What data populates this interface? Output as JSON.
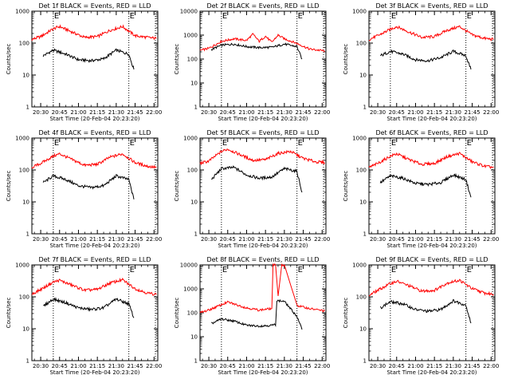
{
  "chart_data": [
    {
      "type": "line",
      "title": "Det 1f BLACK = Events, RED = LLD",
      "xlabel": "Start Time (20-Feb-04 20:23:20)",
      "ylabel": "Counts/sec",
      "yscale": "log",
      "ylim": [
        1,
        1000
      ],
      "y_ticks": [
        "1",
        "10",
        "100",
        "1000"
      ],
      "x_ticks": [
        "20:30",
        "20:45",
        "21:00",
        "21:15",
        "21:30",
        "21:45",
        "22:00"
      ],
      "markers": [
        "E",
        "E"
      ],
      "series": [
        {
          "color": "#000000",
          "x": [
            "20:32",
            "20:40",
            "20:50",
            "21:00",
            "21:10",
            "21:20",
            "21:30",
            "21:40",
            "21:44"
          ],
          "y": [
            40,
            60,
            45,
            30,
            28,
            32,
            60,
            45,
            15
          ]
        },
        {
          "color": "#ff0000",
          "x": [
            "20:23",
            "20:30",
            "20:40",
            "20:45",
            "20:55",
            "21:05",
            "21:15",
            "21:25",
            "21:35",
            "21:45",
            "21:55",
            "22:02"
          ],
          "y": [
            130,
            160,
            280,
            330,
            220,
            150,
            160,
            250,
            330,
            170,
            150,
            140
          ]
        }
      ]
    },
    {
      "type": "line",
      "title": "Det 2f BLACK = Events, RED = LLD",
      "xlabel": "Start Time (20-Feb-04 20:23:20)",
      "ylabel": "Counts/sec",
      "yscale": "log",
      "ylim": [
        1,
        10000
      ],
      "y_ticks": [
        "1",
        "10",
        "100",
        "1000",
        "10000"
      ],
      "x_ticks": [
        "20:30",
        "20:45",
        "21:00",
        "21:15",
        "21:30",
        "21:45",
        "22:00"
      ],
      "markers": [
        "E",
        "E"
      ],
      "series": [
        {
          "color": "#000000",
          "x": [
            "20:32",
            "20:40",
            "20:50",
            "21:00",
            "21:10",
            "21:20",
            "21:30",
            "21:40",
            "21:44"
          ],
          "y": [
            250,
            380,
            420,
            330,
            300,
            310,
            420,
            330,
            100
          ]
        },
        {
          "color": "#ff0000",
          "x": [
            "20:23",
            "20:30",
            "20:40",
            "20:50",
            "21:00",
            "21:05",
            "21:10",
            "21:15",
            "21:20",
            "21:25",
            "21:30",
            "21:40",
            "21:50",
            "22:02"
          ],
          "y": [
            230,
            280,
            550,
            700,
            600,
            1100,
            550,
            900,
            500,
            1000,
            700,
            450,
            260,
            220
          ]
        }
      ]
    },
    {
      "type": "line",
      "title": "Det 3f BLACK = Events, RED = LLD",
      "xlabel": "Start Time (20-Feb-04 20:23:20)",
      "ylabel": "Counts/sec",
      "yscale": "log",
      "ylim": [
        1,
        1000
      ],
      "y_ticks": [
        "1",
        "10",
        "100",
        "1000"
      ],
      "x_ticks": [
        "20:30",
        "20:45",
        "21:00",
        "21:15",
        "21:30",
        "21:45",
        "22:00"
      ],
      "markers": [
        "E",
        "E"
      ],
      "series": [
        {
          "color": "#000000",
          "x": [
            "20:32",
            "20:40",
            "20:50",
            "21:00",
            "21:10",
            "21:20",
            "21:30",
            "21:40",
            "21:44"
          ],
          "y": [
            40,
            55,
            45,
            30,
            28,
            35,
            55,
            40,
            15
          ]
        },
        {
          "color": "#ff0000",
          "x": [
            "20:23",
            "20:30",
            "20:40",
            "20:45",
            "20:55",
            "21:05",
            "21:15",
            "21:25",
            "21:35",
            "21:45",
            "21:55",
            "22:02"
          ],
          "y": [
            130,
            170,
            270,
            330,
            220,
            150,
            160,
            250,
            330,
            180,
            140,
            130
          ]
        }
      ]
    },
    {
      "type": "line",
      "title": "Det 4f BLACK = Events, RED = LLD",
      "xlabel": "Start Time (20-Feb-04 20:23:20)",
      "ylabel": "Counts/sec",
      "yscale": "log",
      "ylim": [
        1,
        1000
      ],
      "y_ticks": [
        "1",
        "10",
        "100",
        "1000"
      ],
      "x_ticks": [
        "20:30",
        "20:45",
        "21:00",
        "21:15",
        "21:30",
        "21:45",
        "22:00"
      ],
      "markers": [
        "E",
        "E"
      ],
      "series": [
        {
          "color": "#000000",
          "x": [
            "20:32",
            "20:40",
            "20:50",
            "21:00",
            "21:10",
            "21:20",
            "21:30",
            "21:40",
            "21:44"
          ],
          "y": [
            40,
            65,
            50,
            32,
            28,
            32,
            65,
            50,
            12
          ]
        },
        {
          "color": "#ff0000",
          "x": [
            "20:23",
            "20:30",
            "20:40",
            "20:45",
            "20:55",
            "21:05",
            "21:15",
            "21:25",
            "21:35",
            "21:45",
            "21:55",
            "22:02"
          ],
          "y": [
            120,
            160,
            270,
            320,
            210,
            140,
            150,
            250,
            320,
            170,
            130,
            120
          ]
        }
      ]
    },
    {
      "type": "line",
      "title": "Det 5f BLACK = Events, RED = LLD",
      "xlabel": "Start Time (20-Feb-04 20:23:20)",
      "ylabel": "Counts/sec",
      "yscale": "log",
      "ylim": [
        1,
        1000
      ],
      "y_ticks": [
        "1",
        "10",
        "100",
        "1000"
      ],
      "x_ticks": [
        "20:30",
        "20:45",
        "21:00",
        "21:15",
        "21:30",
        "21:45",
        "22:00"
      ],
      "markers": [
        "E",
        "E"
      ],
      "series": [
        {
          "color": "#000000",
          "x": [
            "20:32",
            "20:40",
            "20:50",
            "21:00",
            "21:10",
            "21:20",
            "21:30",
            "21:40",
            "21:44"
          ],
          "y": [
            50,
            110,
            120,
            70,
            55,
            60,
            110,
            90,
            20
          ]
        },
        {
          "color": "#ff0000",
          "x": [
            "20:23",
            "20:30",
            "20:40",
            "20:45",
            "20:55",
            "21:05",
            "21:15",
            "21:25",
            "21:35",
            "21:45",
            "21:55",
            "22:02"
          ],
          "y": [
            160,
            190,
            380,
            450,
            300,
            200,
            210,
            330,
            380,
            230,
            180,
            170
          ]
        }
      ]
    },
    {
      "type": "line",
      "title": "Det 6f BLACK = Events, RED = LLD",
      "xlabel": "Start Time (20-Feb-04 20:23:20)",
      "ylabel": "Counts/sec",
      "yscale": "log",
      "ylim": [
        1,
        1000
      ],
      "y_ticks": [
        "1",
        "10",
        "100",
        "1000"
      ],
      "x_ticks": [
        "20:30",
        "20:45",
        "21:00",
        "21:15",
        "21:30",
        "21:45",
        "22:00"
      ],
      "markers": [
        "E",
        "E"
      ],
      "series": [
        {
          "color": "#000000",
          "x": [
            "20:32",
            "20:40",
            "20:50",
            "21:00",
            "21:10",
            "21:20",
            "21:30",
            "21:40",
            "21:44"
          ],
          "y": [
            40,
            65,
            55,
            38,
            35,
            40,
            70,
            50,
            14
          ]
        },
        {
          "color": "#ff0000",
          "x": [
            "20:23",
            "20:30",
            "20:40",
            "20:45",
            "20:55",
            "21:05",
            "21:15",
            "21:25",
            "21:35",
            "21:45",
            "21:55",
            "22:02"
          ],
          "y": [
            120,
            160,
            270,
            320,
            210,
            150,
            160,
            260,
            330,
            180,
            130,
            120
          ]
        }
      ]
    },
    {
      "type": "line",
      "title": "Det 7f BLACK = Events, RED = LLD",
      "xlabel": "Start Time (20-Feb-04 20:23:20)",
      "ylabel": "Counts/sec",
      "yscale": "log",
      "ylim": [
        1,
        1000
      ],
      "y_ticks": [
        "1",
        "10",
        "100",
        "1000"
      ],
      "x_ticks": [
        "20:30",
        "20:45",
        "21:00",
        "21:15",
        "21:30",
        "21:45",
        "22:00"
      ],
      "markers": [
        "E",
        "E"
      ],
      "series": [
        {
          "color": "#000000",
          "x": [
            "20:32",
            "20:40",
            "20:50",
            "21:00",
            "21:10",
            "21:20",
            "21:30",
            "21:40",
            "21:44"
          ],
          "y": [
            50,
            85,
            65,
            45,
            40,
            45,
            85,
            60,
            22
          ]
        },
        {
          "color": "#ff0000",
          "x": [
            "20:23",
            "20:30",
            "20:40",
            "20:45",
            "20:55",
            "21:05",
            "21:15",
            "21:25",
            "21:35",
            "21:45",
            "21:55",
            "22:02"
          ],
          "y": [
            120,
            170,
            290,
            330,
            230,
            160,
            170,
            270,
            340,
            180,
            130,
            120
          ]
        }
      ]
    },
    {
      "type": "line",
      "title": "Det 8f BLACK = Events, RED = LLD",
      "xlabel": "Start Time (20-Feb-04 20:23:20)",
      "ylabel": "Counts/sec",
      "yscale": "log",
      "ylim": [
        1,
        10000
      ],
      "y_ticks": [
        "1",
        "10",
        "100",
        "1000",
        "10000"
      ],
      "x_ticks": [
        "20:30",
        "20:45",
        "21:00",
        "21:15",
        "21:30",
        "21:45",
        "22:00"
      ],
      "markers": [
        "E",
        "E"
      ],
      "series": [
        {
          "color": "#000000",
          "x": [
            "20:32",
            "20:40",
            "20:50",
            "21:00",
            "21:10",
            "21:20",
            "21:23",
            "21:24",
            "21:30",
            "21:40",
            "21:44"
          ],
          "y": [
            35,
            55,
            45,
            30,
            28,
            30,
            32,
            320,
            300,
            70,
            20
          ]
        },
        {
          "color": "#ff0000",
          "x": [
            "20:23",
            "20:30",
            "20:45",
            "21:00",
            "21:10",
            "21:20",
            "21:21",
            "21:23",
            "21:25",
            "21:28",
            "21:30",
            "21:40",
            "21:50",
            "22:02"
          ],
          "y": [
            100,
            130,
            280,
            160,
            130,
            150,
            10000,
            10000,
            500,
            10000,
            10000,
            200,
            150,
            120
          ]
        }
      ]
    },
    {
      "type": "line",
      "title": "Det 9f BLACK = Events, RED = LLD",
      "xlabel": "Start Time (20-Feb-04 20:23:20)",
      "ylabel": "Counts/sec",
      "yscale": "log",
      "ylim": [
        1,
        1000
      ],
      "y_ticks": [
        "1",
        "10",
        "100",
        "1000"
      ],
      "x_ticks": [
        "20:30",
        "20:45",
        "21:00",
        "21:15",
        "21:30",
        "21:45",
        "22:00"
      ],
      "markers": [
        "E",
        "E"
      ],
      "series": [
        {
          "color": "#000000",
          "x": [
            "20:32",
            "20:40",
            "20:50",
            "21:00",
            "21:10",
            "21:20",
            "21:30",
            "21:40",
            "21:44"
          ],
          "y": [
            45,
            70,
            60,
            40,
            35,
            40,
            75,
            55,
            15
          ]
        },
        {
          "color": "#ff0000",
          "x": [
            "20:23",
            "20:30",
            "20:40",
            "20:45",
            "20:55",
            "21:05",
            "21:15",
            "21:25",
            "21:35",
            "21:45",
            "21:55",
            "22:02"
          ],
          "y": [
            110,
            160,
            260,
            310,
            220,
            150,
            160,
            270,
            330,
            180,
            130,
            120
          ]
        }
      ]
    }
  ]
}
